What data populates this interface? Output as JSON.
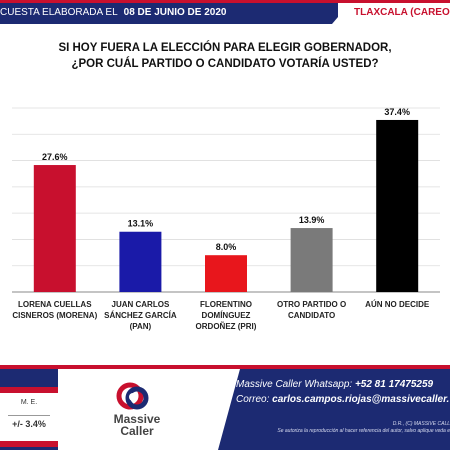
{
  "header": {
    "left_text": "CUESTA ELABORADA EL",
    "date": "08 DE JUNIO DE 2020",
    "right_text": "TLAXCALA (CAREO"
  },
  "question": {
    "line1": "SI HOY FUERA LA ELECCIÓN PARA ELEGIR GOBERNADOR,",
    "line2": "¿POR CUÁL PARTIDO O CANDIDATO VOTARÍA USTED?"
  },
  "chart_data": {
    "type": "bar",
    "title": "SI HOY FUERA LA ELECCIÓN PARA ELEGIR GOBERNADOR, ¿POR CUÁL PARTIDO O CANDIDATO VOTARÍA USTED?",
    "categories": [
      [
        "LORENA CUELLAS",
        "CISNEROS (MORENA)"
      ],
      [
        "JUAN CARLOS",
        "SÁNCHEZ GARCÍA",
        "(PAN)"
      ],
      [
        "FLORENTINO",
        "DOMÍNGUEZ",
        "ORDOÑEZ (PRI)"
      ],
      [
        "OTRO PARTIDO O",
        "CANDIDATO"
      ],
      [
        "AÚN NO DECIDE"
      ]
    ],
    "values": [
      27.6,
      13.1,
      8.0,
      13.9,
      37.4
    ],
    "value_labels": [
      "27.6%",
      "13.1%",
      "8.0%",
      "13.9%",
      "37.4%"
    ],
    "colors": [
      "#c8102e",
      "#1a1aa8",
      "#e8161c",
      "#7a7a7a",
      "#000000"
    ],
    "ylim": [
      0,
      40
    ],
    "grid": true,
    "xlabel": "",
    "ylabel": ""
  },
  "footer": {
    "me_label": "M. E.",
    "me_value": "+/- 3.4%",
    "logo_line1": "Massive",
    "logo_line2": "Caller",
    "whatsapp_label": "Massive Caller Whatsapp:",
    "whatsapp_value": "+52 81 17475259",
    "email_label": "Correo:",
    "email_value": "carlos.campos.riojas@massivecaller.",
    "rights_line1": "D.R., (C) MASSIVE CALL",
    "rights_line2": "Se autoriza la reproducción al hacer referencia del autor, salvo aplique veda e"
  }
}
